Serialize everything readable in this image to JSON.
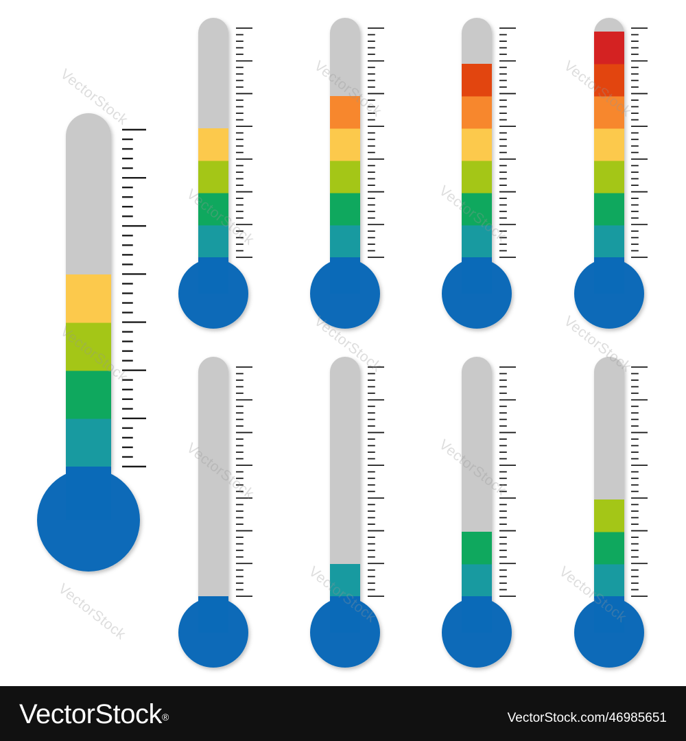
{
  "colors": {
    "tube_empty": "#c9c9c9",
    "bulb": "#0a6ab8",
    "bands": [
      "#189aa0",
      "#0fa85e",
      "#a4c617",
      "#fcc94c",
      "#f7872d",
      "#e2450f",
      "#d42222"
    ],
    "ticks": "#1a1a1a",
    "footer_bg": "#111111"
  },
  "thermometers": [
    {
      "name": "large",
      "filled_bands": 4,
      "total_bands": 7
    },
    {
      "name": "top-1",
      "filled_bands": 4,
      "total_bands": 7
    },
    {
      "name": "top-2",
      "filled_bands": 5,
      "total_bands": 7
    },
    {
      "name": "top-3",
      "filled_bands": 6,
      "total_bands": 7
    },
    {
      "name": "top-4",
      "filled_bands": 7,
      "total_bands": 7
    },
    {
      "name": "bottom-1",
      "filled_bands": 0,
      "total_bands": 7
    },
    {
      "name": "bottom-2",
      "filled_bands": 1,
      "total_bands": 7
    },
    {
      "name": "bottom-3",
      "filled_bands": 2,
      "total_bands": 7
    },
    {
      "name": "bottom-4",
      "filled_bands": 3,
      "total_bands": 7
    }
  ],
  "watermark": "VectorStock",
  "footer": {
    "logo": "VectorStock",
    "logo_mark": "®",
    "credit": "VectorStock.com/46985651"
  }
}
